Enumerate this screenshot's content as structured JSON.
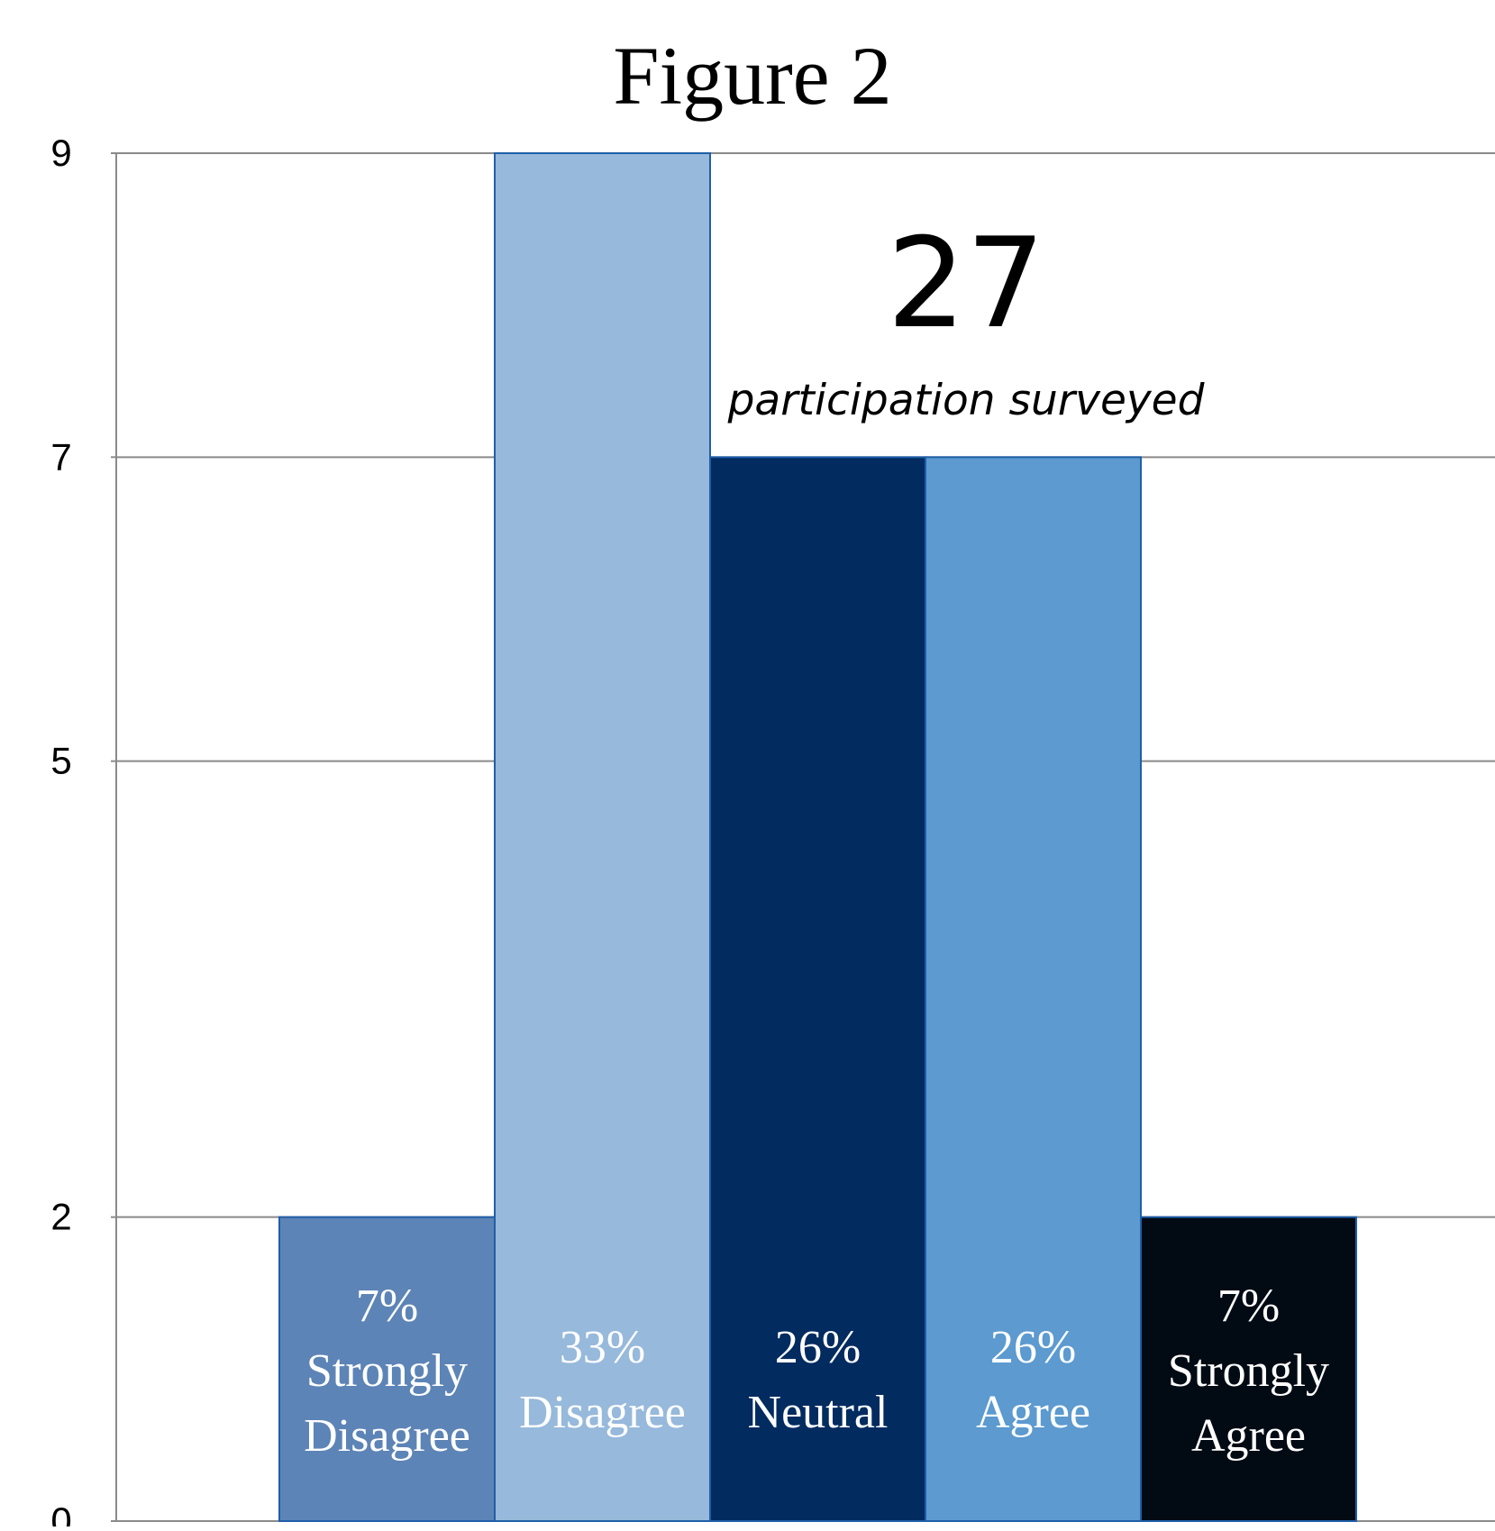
{
  "chart_data": {
    "type": "bar",
    "title": "Figure 2",
    "xlabel": "",
    "ylabel": "",
    "ylim": [
      0,
      9
    ],
    "yticks": [
      0,
      2,
      5,
      7,
      9
    ],
    "grid": true,
    "legend": "none",
    "categories": [
      "Strongly Disagree",
      "Disagree",
      "Neutral",
      "Agree",
      "Strongly Agree"
    ],
    "values": [
      2,
      9,
      7,
      7,
      2
    ],
    "bar_labels": [
      [
        "7%",
        "Strongly",
        "Disagree"
      ],
      [
        "33%",
        "Disagree"
      ],
      [
        "26%",
        "Neutral"
      ],
      [
        "26%",
        "Agree"
      ],
      [
        "7%",
        "Strongly",
        "Agree"
      ]
    ],
    "colors": [
      "#5d84b6",
      "#97b9db",
      "#022b60",
      "#5c9ad0",
      "#020b14"
    ],
    "annotation": {
      "number": "27",
      "text": "participation surveyed"
    }
  }
}
